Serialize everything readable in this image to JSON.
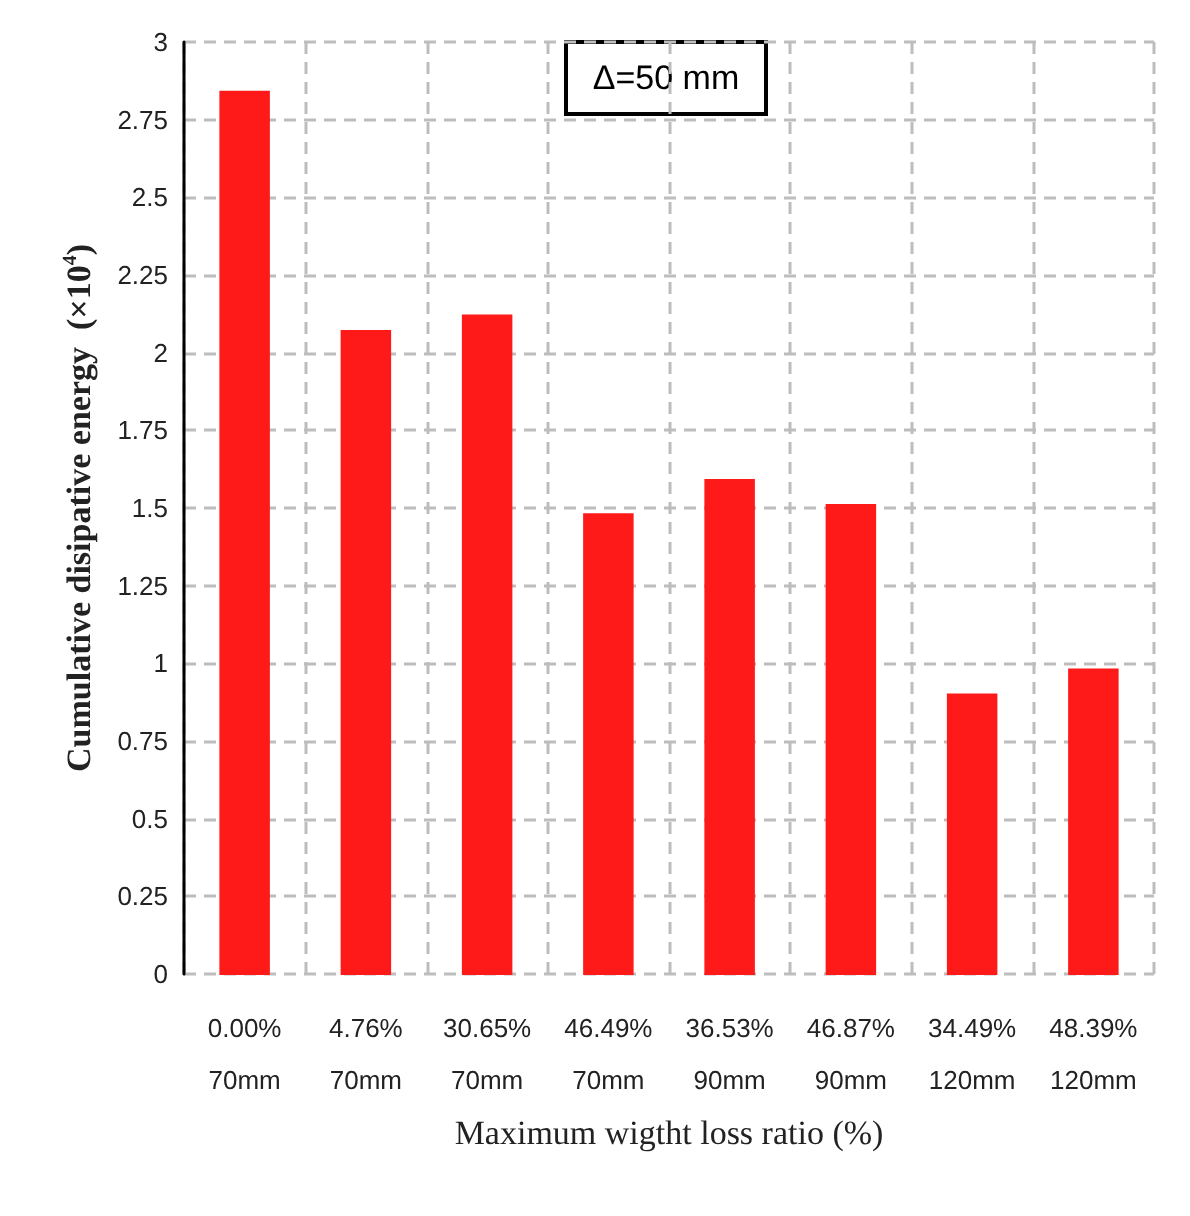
{
  "chart_data": {
    "type": "bar",
    "ylabel": "Cumulative disipative energy  (×10$^{4}$)",
    "xlabel": "Maximum wigtht loss ratio (%)",
    "categories": [
      "0.00%\n70mm",
      "4.76%\n70mm",
      "30.65%\n70mm",
      "46.49%\n70mm",
      "36.53%\n90mm",
      "46.87%\n90mm",
      "34.49%\n120mm",
      "48.39%\n120mm"
    ],
    "values": [
      2.84,
      2.07,
      2.12,
      1.48,
      1.59,
      1.51,
      0.9,
      0.98
    ],
    "color": "#ff1a1a",
    "ylim": [
      0,
      3
    ],
    "yticks": [
      0,
      0.25,
      0.5,
      0.75,
      1,
      1.25,
      1.5,
      1.75,
      2,
      2.25,
      2.5,
      2.75,
      3
    ],
    "annotations": [
      "Δ=50 mm"
    ],
    "grid": true
  }
}
